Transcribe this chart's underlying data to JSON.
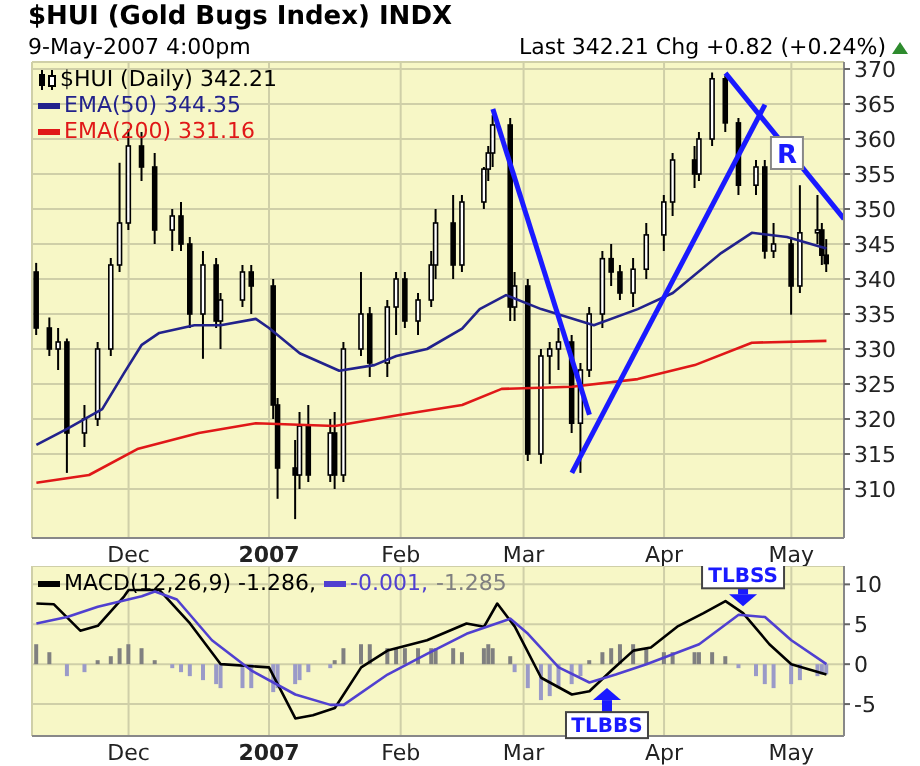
{
  "chart_data": [
    {
      "type": "candlestick",
      "title": "$HUI (Gold Bugs Index) INDX",
      "subtitle": "9-May-2007 4:00pm",
      "annotations": [
        "Last 342.21  Chg +0.82 (+0.24%)",
        {
          "text": "R",
          "x": "2007-04-30",
          "y": 358
        }
      ],
      "x": [
        "2006-11-10",
        "2006-11-13",
        "2006-11-15",
        "2006-11-17",
        "2006-11-21",
        "2006-11-24",
        "2006-11-27",
        "2006-11-29",
        "2006-12-01",
        "2006-12-04",
        "2006-12-07",
        "2006-12-11",
        "2006-12-13",
        "2006-12-15",
        "2006-12-18",
        "2006-12-21",
        "2006-12-22",
        "2006-12-27",
        "2006-12-29",
        "2007-01-03",
        "2007-01-04",
        "2007-01-08",
        "2007-01-09",
        "2007-01-11",
        "2007-01-16",
        "2007-01-17",
        "2007-01-19",
        "2007-01-23",
        "2007-01-25",
        "2007-01-29",
        "2007-01-31",
        "2007-02-02",
        "2007-02-05",
        "2007-02-08",
        "2007-02-09",
        "2007-02-13",
        "2007-02-15",
        "2007-02-20",
        "2007-02-21",
        "2007-02-22",
        "2007-02-26",
        "2007-02-27",
        "2007-03-02",
        "2007-03-05",
        "2007-03-07",
        "2007-03-09",
        "2007-03-12",
        "2007-03-14",
        "2007-03-16",
        "2007-03-19",
        "2007-03-21",
        "2007-03-23",
        "2007-03-26",
        "2007-03-29",
        "2007-04-02",
        "2007-04-04",
        "2007-04-09",
        "2007-04-10",
        "2007-04-13",
        "2007-04-16",
        "2007-04-19",
        "2007-04-23",
        "2007-04-25",
        "2007-04-27",
        "2007-05-01",
        "2007-05-03",
        "2007-05-07",
        "2007-05-08",
        "2007-05-09"
      ],
      "series": [
        {
          "type": "candlestick",
          "name": "$HUI (Daily) 342.21",
          "color": "#000000",
          "ohlc": [
            [
              341,
              342.3,
              332,
              333
            ],
            [
              333,
              334.5,
              329,
              330
            ],
            [
              330,
              333,
              327,
              331
            ],
            [
              331,
              331.5,
              312.3,
              318
            ],
            [
              318,
              322,
              316,
              320
            ],
            [
              320,
              331,
              319,
              330
            ],
            [
              330,
              343,
              329,
              342
            ],
            [
              342,
              356.6,
              341,
              348
            ],
            [
              348,
              361.4,
              347,
              359
            ],
            [
              359,
              361,
              354,
              356
            ],
            [
              356,
              358,
              345,
              347
            ],
            [
              347,
              350,
              344,
              349
            ],
            [
              349,
              351,
              344,
              345
            ],
            [
              345,
              346,
              333,
              335
            ],
            [
              335,
              344,
              328.6,
              342
            ],
            [
              342,
              343,
              333,
              334
            ],
            [
              334,
              338,
              330,
              337
            ],
            [
              337,
              342,
              336,
              341
            ],
            [
              341,
              342,
              335,
              339
            ],
            [
              339,
              340,
              320,
              322
            ],
            [
              322,
              323,
              308.6,
              313
            ],
            [
              313,
              317,
              305.7,
              312
            ],
            [
              312,
              321,
              310,
              319
            ],
            [
              319,
              322,
              311,
              312
            ],
            [
              312,
              320,
              311,
              318
            ],
            [
              318,
              321,
              310,
              312
            ],
            [
              312,
              331,
              311,
              330
            ],
            [
              330,
              341,
              329,
              335
            ],
            [
              335,
              336,
              326,
              328
            ],
            [
              328,
              337,
              326,
              336
            ],
            [
              336,
              341,
              332,
              340
            ],
            [
              340,
              341,
              333,
              334
            ],
            [
              334,
              338,
              332,
              337
            ],
            [
              337,
              344,
              336,
              342
            ],
            [
              342,
              350,
              340,
              348
            ],
            [
              348,
              352,
              340,
              342
            ],
            [
              342,
              352,
              341,
              351
            ],
            [
              351,
              356,
              350,
              355.7
            ],
            [
              355.7,
              359,
              354,
              358
            ],
            [
              358,
              363.4,
              356,
              362
            ],
            [
              362,
              363,
              334,
              336
            ],
            [
              336,
              341,
              334,
              339
            ],
            [
              339,
              340,
              314,
              315
            ],
            [
              315,
              330,
              313.6,
              329
            ],
            [
              329,
              331,
              325,
              330
            ],
            [
              330,
              333,
              327,
              331
            ],
            [
              331,
              332,
              318,
              319.4
            ],
            [
              319.4,
              328,
              312.3,
              327
            ],
            [
              327,
              336,
              326,
              335
            ],
            [
              335,
              344,
              333,
              342.9
            ],
            [
              342.9,
              345,
              339,
              341
            ],
            [
              341,
              342,
              337,
              338
            ],
            [
              338,
              343,
              336,
              341.4
            ],
            [
              341.4,
              348,
              340,
              346.3
            ],
            [
              346.3,
              352,
              344,
              351
            ],
            [
              351,
              358,
              349,
              357
            ],
            [
              357,
              359,
              353,
              355
            ],
            [
              355,
              361,
              354,
              360
            ],
            [
              360,
              369.5,
              359,
              368.6
            ],
            [
              368.6,
              369,
              361,
              362.3
            ],
            [
              362.3,
              363,
              352,
              353.4
            ],
            [
              353.4,
              357,
              352,
              356
            ],
            [
              356,
              357,
              342.9,
              344
            ],
            [
              344,
              348,
              343,
              345
            ],
            [
              345,
              346,
              334.9,
              339
            ],
            [
              339,
              353.4,
              338,
              346.6
            ],
            [
              346.6,
              352,
              345,
              347
            ],
            [
              347,
              348,
              342,
              343.4
            ],
            [
              343.4,
              345.7,
              341,
              342.21
            ]
          ]
        },
        {
          "type": "line",
          "name": "EMA(50) 344.35",
          "color": "#22228c",
          "x": [
            "2006-11-10",
            "2006-11-17",
            "2006-11-25",
            "2006-11-30",
            "2006-12-04",
            "2006-12-08",
            "2006-12-16",
            "2006-12-22",
            "2006-12-30",
            "2007-01-02",
            "2007-01-09",
            "2007-01-18",
            "2007-01-26",
            "2007-01-31",
            "2007-02-07",
            "2007-02-15",
            "2007-02-19",
            "2007-02-25",
            "2007-03-05",
            "2007-03-17",
            "2007-03-27",
            "2007-04-04",
            "2007-04-15",
            "2007-04-22",
            "2007-04-30",
            "2007-05-09"
          ],
          "values": [
            316.3,
            318.6,
            321.4,
            326.6,
            330.6,
            332.3,
            333.4,
            333.4,
            334.3,
            333,
            329.4,
            326.9,
            327.7,
            329,
            330,
            332.9,
            335.7,
            337.7,
            335.7,
            333.4,
            335.7,
            338,
            343.7,
            346.6,
            346,
            344.35
          ]
        },
        {
          "type": "line",
          "name": "EMA(200) 331.16",
          "color": "#e01818",
          "x": [
            "2006-11-10",
            "2006-11-22",
            "2006-12-03",
            "2006-12-17",
            "2006-12-30",
            "2007-01-17",
            "2007-02-01",
            "2007-02-15",
            "2007-02-24",
            "2007-03-12",
            "2007-03-27",
            "2007-04-09",
            "2007-04-22",
            "2007-05-09"
          ],
          "values": [
            310.9,
            312,
            315.7,
            318,
            319.4,
            319,
            320.6,
            322,
            324.3,
            324.6,
            325.7,
            327.7,
            330.9,
            331.16
          ]
        },
        {
          "type": "line",
          "color": "#1a1aff",
          "x": [
            "2007-02-22",
            "2007-03-16"
          ],
          "values": [
            364.3,
            320.6
          ]
        },
        {
          "type": "line",
          "color": "#1a1aff",
          "x": [
            "2007-03-12",
            "2007-04-25"
          ],
          "values": [
            312.3,
            364.9
          ]
        },
        {
          "type": "line",
          "color": "#1a1aff",
          "x": [
            "2007-04-16",
            "2007-05-13"
          ],
          "values": [
            369.4,
            348.6
          ]
        }
      ],
      "xlim": [
        "2006-11-09",
        "2007-05-13"
      ],
      "xticks": [
        {
          "value": "2006-12-01",
          "label": "Dec"
        },
        {
          "value": "2007-01-02",
          "label": "2007"
        },
        {
          "value": "2007-02-01",
          "label": "Feb"
        },
        {
          "value": "2007-03-01",
          "label": "Mar"
        },
        {
          "value": "2007-04-02",
          "label": "Apr"
        },
        {
          "value": "2007-05-01",
          "label": "May"
        }
      ],
      "ylim": [
        303,
        371
      ],
      "yticks": [
        310,
        315,
        320,
        325,
        330,
        335,
        340,
        345,
        350,
        355,
        360,
        365,
        370
      ],
      "grid": true,
      "legend": "top left"
    },
    {
      "type": "line",
      "annotations": [
        {
          "text": "TLBSS",
          "x": "2007-04-20",
          "y": 7
        },
        {
          "text": "TLBBS",
          "x": "2007-03-20",
          "y": -2.5
        }
      ],
      "x": [
        "2006-11-10",
        "2006-11-13",
        "2006-11-15",
        "2006-11-17",
        "2006-11-21",
        "2006-11-24",
        "2006-11-27",
        "2006-11-29",
        "2006-12-01",
        "2006-12-04",
        "2006-12-07",
        "2006-12-11",
        "2006-12-13",
        "2006-12-15",
        "2006-12-18",
        "2006-12-21",
        "2006-12-22",
        "2006-12-27",
        "2006-12-29",
        "2007-01-03",
        "2007-01-04",
        "2007-01-08",
        "2007-01-09",
        "2007-01-11",
        "2007-01-16",
        "2007-01-17",
        "2007-01-19",
        "2007-01-23",
        "2007-01-25",
        "2007-01-29",
        "2007-01-31",
        "2007-02-02",
        "2007-02-05",
        "2007-02-08",
        "2007-02-09",
        "2007-02-13",
        "2007-02-15",
        "2007-02-20",
        "2007-02-21",
        "2007-02-22",
        "2007-02-26",
        "2007-02-27",
        "2007-03-02",
        "2007-03-05",
        "2007-03-07",
        "2007-03-09",
        "2007-03-12",
        "2007-03-14",
        "2007-03-16",
        "2007-03-19",
        "2007-03-21",
        "2007-03-23",
        "2007-03-26",
        "2007-03-29",
        "2007-04-02",
        "2007-04-04",
        "2007-04-09",
        "2007-04-10",
        "2007-04-13",
        "2007-04-16",
        "2007-04-19",
        "2007-04-23",
        "2007-04-25",
        "2007-04-27",
        "2007-05-01",
        "2007-05-03",
        "2007-05-07",
        "2007-05-08",
        "2007-05-09"
      ],
      "series": [
        {
          "type": "bar",
          "name": "-1.285",
          "color": "#808080",
          "values": [
            2.5,
            1.5,
            0,
            -1.5,
            -1,
            0.5,
            1,
            2,
            2.5,
            2,
            0.5,
            -0.5,
            -1,
            -1.5,
            -2,
            -2.5,
            -3,
            -3,
            -3,
            -3.5,
            -3,
            -2.5,
            -2,
            -1,
            -0.5,
            0.5,
            2,
            2.5,
            2.5,
            2,
            2,
            2,
            2,
            2,
            2,
            2,
            1.5,
            2,
            2.5,
            2,
            1,
            -1,
            -3,
            -4.5,
            -4,
            -3,
            -2.5,
            -1.5,
            0.5,
            1.5,
            2,
            2.5,
            2.5,
            2,
            1.5,
            1.5,
            1.5,
            1.5,
            1.5,
            1,
            -0.5,
            -1.5,
            -2.5,
            -3,
            -2.5,
            -2,
            -1.5,
            -1.3,
            -1.285
          ],
          "colors": [
            "#808080",
            "#808080",
            "#808080",
            "#9a9ac8",
            "#9a9ac8",
            "#808080",
            "#808080",
            "#808080",
            "#808080",
            "#808080",
            "#808080",
            "#9a9ac8",
            "#9a9ac8",
            "#9a9ac8",
            "#9a9ac8",
            "#9a9ac8",
            "#9a9ac8",
            "#9a9ac8",
            "#9a9ac8",
            "#9a9ac8",
            "#9a9ac8",
            "#9a9ac8",
            "#9a9ac8",
            "#9a9ac8",
            "#9a9ac8",
            "#808080",
            "#808080",
            "#808080",
            "#808080",
            "#808080",
            "#808080",
            "#808080",
            "#808080",
            "#808080",
            "#808080",
            "#808080",
            "#808080",
            "#808080",
            "#808080",
            "#808080",
            "#808080",
            "#9a9ac8",
            "#9a9ac8",
            "#9a9ac8",
            "#9a9ac8",
            "#9a9ac8",
            "#9a9ac8",
            "#9a9ac8",
            "#808080",
            "#808080",
            "#808080",
            "#808080",
            "#808080",
            "#808080",
            "#808080",
            "#808080",
            "#808080",
            "#808080",
            "#808080",
            "#808080",
            "#9a9ac8",
            "#9a9ac8",
            "#9a9ac8",
            "#9a9ac8",
            "#9a9ac8",
            "#9a9ac8",
            "#9a9ac8",
            "#9a9ac8",
            "#9a9ac8"
          ]
        },
        {
          "type": "line",
          "name": "MACD(12,26,9) -1.286,",
          "color": "#000000",
          "x": [
            "2006-11-10",
            "2006-11-14",
            "2006-11-20",
            "2006-11-24",
            "2006-11-30",
            "2006-12-01",
            "2006-12-08",
            "2006-12-15",
            "2006-12-22",
            "2007-01-02",
            "2007-01-08",
            "2007-01-12",
            "2007-01-17",
            "2007-01-23",
            "2007-01-29",
            "2007-02-07",
            "2007-02-16",
            "2007-02-20",
            "2007-02-23",
            "2007-02-27",
            "2007-03-05",
            "2007-03-12",
            "2007-03-16",
            "2007-03-21",
            "2007-03-26",
            "2007-03-30",
            "2007-04-05",
            "2007-04-11",
            "2007-04-16",
            "2007-04-20",
            "2007-04-26",
            "2007-05-01",
            "2007-05-09"
          ],
          "values": [
            7.6,
            7.5,
            4.2,
            4.8,
            8.5,
            9.3,
            9.3,
            5.1,
            0,
            -0.4,
            -6.8,
            -6.4,
            -5.5,
            -0.4,
            1.7,
            3,
            5.1,
            4.7,
            7.6,
            4.7,
            -1.7,
            -3.8,
            -3.4,
            -0.8,
            1.7,
            2.1,
            4.7,
            6.4,
            7.9,
            6.4,
            2.5,
            0,
            -1.286
          ]
        },
        {
          "type": "line",
          "name": "-0.001,",
          "color": "#5040d0",
          "x": [
            "2006-11-10",
            "2006-11-17",
            "2006-11-24",
            "2006-12-04",
            "2006-12-07",
            "2006-12-12",
            "2006-12-20",
            "2006-12-29",
            "2007-01-08",
            "2007-01-16",
            "2007-01-19",
            "2007-01-29",
            "2007-02-07",
            "2007-02-16",
            "2007-02-26",
            "2007-03-02",
            "2007-03-09",
            "2007-03-16",
            "2007-03-22",
            "2007-03-29",
            "2007-04-10",
            "2007-04-19",
            "2007-04-25",
            "2007-05-01",
            "2007-05-09"
          ],
          "values": [
            5.1,
            5.9,
            7.2,
            8.5,
            9.1,
            8.1,
            3,
            -0.8,
            -3.8,
            -5.1,
            -5.1,
            -1.3,
            1.3,
            3.8,
            5.7,
            3.8,
            -0.4,
            -2.3,
            -1.3,
            0,
            2.5,
            6.2,
            5.9,
            3,
            -0.001
          ]
        }
      ],
      "xlim": [
        "2006-11-09",
        "2007-05-13"
      ],
      "xticks": [
        {
          "value": "2006-12-01",
          "label": "Dec"
        },
        {
          "value": "2007-01-02",
          "label": "2007"
        },
        {
          "value": "2007-02-01",
          "label": "Feb"
        },
        {
          "value": "2007-03-01",
          "label": "Mar"
        },
        {
          "value": "2007-04-02",
          "label": "Apr"
        },
        {
          "value": "2007-05-01",
          "label": "May"
        }
      ],
      "ylim": [
        -9,
        12.3
      ],
      "yticks": [
        -5,
        0,
        5,
        10
      ],
      "grid": true,
      "legend": "top left"
    }
  ]
}
